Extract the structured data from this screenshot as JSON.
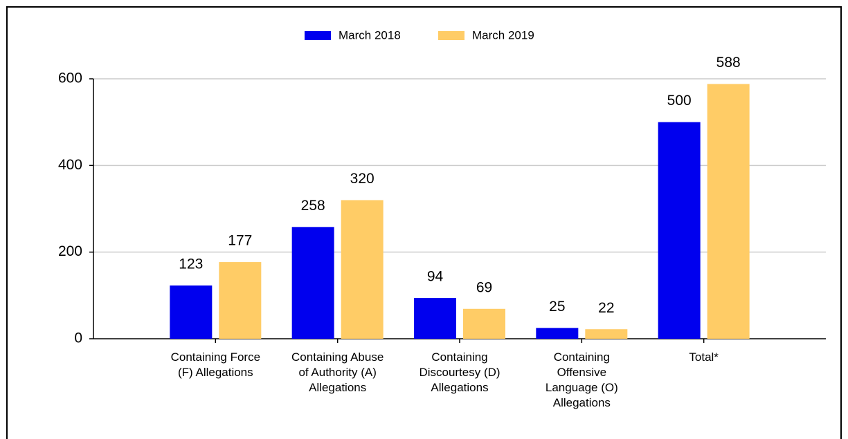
{
  "chart_data": {
    "type": "bar",
    "categories": [
      "Containing Force (F) Allegations",
      "Containing Abuse of Authority (A) Allegations",
      "Containing Discourtesy (D) Allegations",
      "Containing Offensive Language (O) Allegations",
      "Total*"
    ],
    "series": [
      {
        "name": "March 2018",
        "color": "#0000ee",
        "values": [
          123,
          258,
          94,
          25,
          500
        ]
      },
      {
        "name": "March 2019",
        "color": "#ffcc66",
        "values": [
          177,
          320,
          69,
          22,
          588
        ]
      }
    ],
    "ylim": [
      0,
      600
    ],
    "yticks": [
      0,
      200,
      400,
      600
    ],
    "grid": true,
    "legend": "top"
  }
}
